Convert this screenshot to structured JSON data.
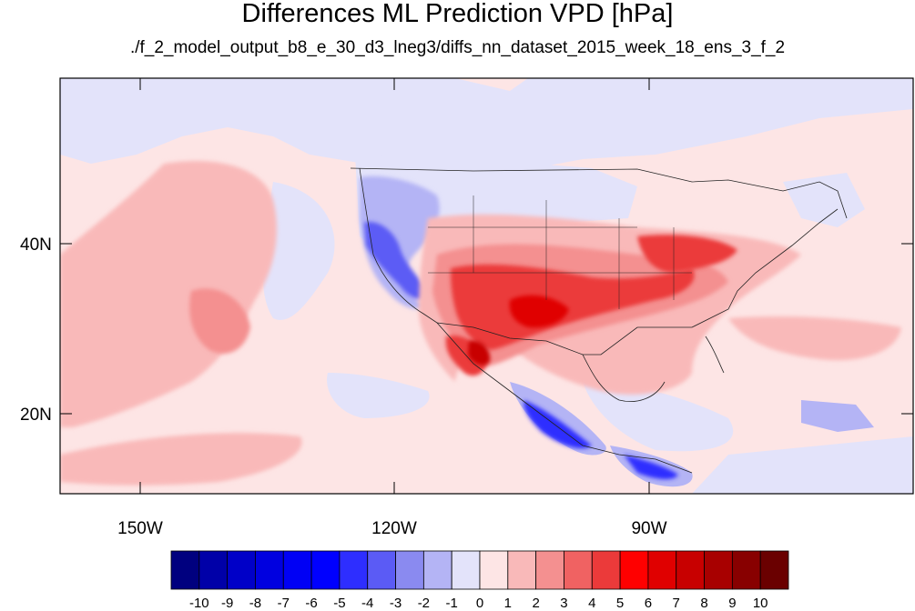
{
  "title": "Differences ML Prediction VPD [hPa]",
  "subtitle": "./f_2_model_output_b8_e_30_d3_lneg3/diffs_nn_dataset_2015_week_18_ens_3_f_2",
  "axes": {
    "lat_ticks": [
      {
        "value": 40,
        "label": "40N"
      },
      {
        "value": 20,
        "label": "20N"
      }
    ],
    "lon_ticks": [
      {
        "value": -150,
        "label": "150W"
      },
      {
        "value": -120,
        "label": "120W"
      },
      {
        "value": -90,
        "label": "90W"
      }
    ]
  },
  "colorbar": {
    "labels": [
      "-10",
      "-9",
      "-8",
      "-7",
      "-6",
      "-5",
      "-4",
      "-3",
      "-2",
      "-1",
      "0",
      "1",
      "2",
      "3",
      "4",
      "5",
      "6",
      "7",
      "8",
      "9",
      "10"
    ],
    "colors": [
      "#00007f",
      "#0000a8",
      "#0000c8",
      "#0000e0",
      "#0000f5",
      "#0000ff",
      "#2e2eff",
      "#5b5bf5",
      "#8a8af0",
      "#b4b4f5",
      "#e3e3fa",
      "#fde5e5",
      "#f9b9b9",
      "#f49090",
      "#f06262",
      "#eb3a3a",
      "#ff0000",
      "#e00000",
      "#c80000",
      "#a80000",
      "#880000",
      "#6a0000"
    ]
  },
  "map_data": {
    "region": "Continental United States and surrounding Pacific / Gulf of Mexico",
    "lon_range": [
      -160,
      -61
    ],
    "lat_range": [
      11,
      58
    ],
    "background_color": "#fde5e5"
  }
}
